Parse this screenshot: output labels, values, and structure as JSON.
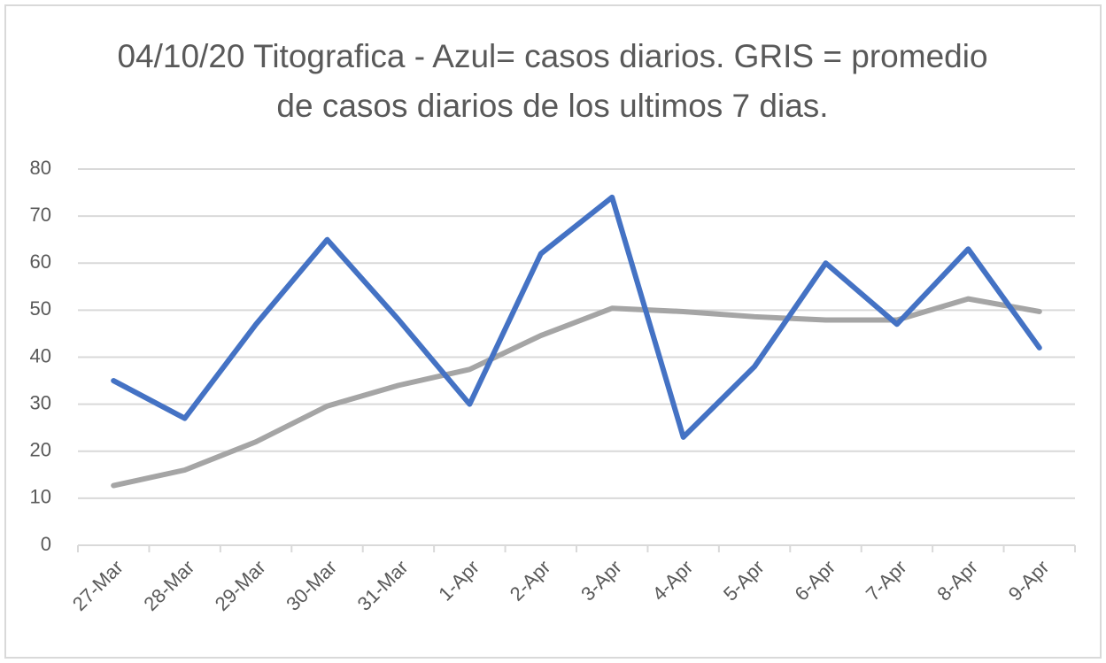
{
  "chart_data": {
    "type": "line",
    "title": "04/10/20 Titografica - Azul= casos diarios. GRIS = promedio de casos diarios de los ultimos 7 dias.",
    "categories": [
      "27-Mar",
      "28-Mar",
      "29-Mar",
      "30-Mar",
      "31-Mar",
      "1-Apr",
      "2-Apr",
      "3-Apr",
      "4-Apr",
      "5-Apr",
      "6-Apr",
      "7-Apr",
      "8-Apr",
      "9-Apr"
    ],
    "series": [
      {
        "color": "#4472c4",
        "values": [
          35,
          27,
          47,
          65,
          48,
          30,
          62,
          74,
          23,
          38,
          60,
          47,
          63,
          42
        ]
      },
      {
        "color": "#a5a5a5",
        "values": [
          12.7,
          16,
          22,
          29.6,
          34,
          37.4,
          44.6,
          50.4,
          49.7,
          48.6,
          47.9,
          47.9,
          52.4,
          49.7
        ]
      }
    ],
    "ylim": [
      0,
      80
    ],
    "yticks": [
      0,
      10,
      20,
      30,
      40,
      50,
      60,
      70,
      80
    ],
    "grid": true
  }
}
